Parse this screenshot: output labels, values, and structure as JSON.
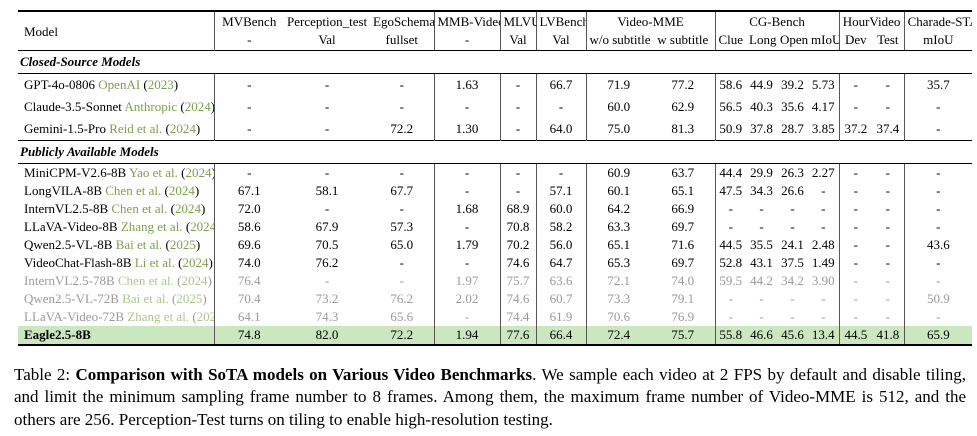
{
  "colors": {
    "citation_green": "#7d9f4e",
    "muted_citation_green": "#aec68f",
    "grayed_text": "#9a9a9a",
    "highlight_green": "#cbe7bf"
  },
  "table": {
    "model_header": "Model",
    "column_groups": [
      {
        "label": "MVBench",
        "subs": [
          "-"
        ]
      },
      {
        "label": "Perception_test",
        "subs": [
          "Val"
        ]
      },
      {
        "label": "EgoSchema",
        "subs": [
          "fullset"
        ]
      },
      {
        "label": "MMB-Video",
        "subs": [
          "-"
        ]
      },
      {
        "label": "MLVU",
        "subs": [
          "Val"
        ]
      },
      {
        "label": "LVBench",
        "subs": [
          "Val"
        ]
      },
      {
        "label": "Video-MME",
        "subs": [
          "w/o subtitle",
          "w subtitle"
        ]
      },
      {
        "label": "CG-Bench",
        "subs": [
          "Clue",
          "Long",
          "Open",
          "mIoU"
        ]
      },
      {
        "label": "HourVideo",
        "subs": [
          "Dev",
          "Test"
        ]
      },
      {
        "label": "Charade-STA",
        "subs": [
          "mIoU"
        ]
      }
    ],
    "sections": [
      {
        "title": "Closed-Source Models",
        "kind": "closed",
        "rows": [
          {
            "model": "GPT-4o-0806",
            "cite": "OpenAI",
            "year": "2023",
            "style": "normal",
            "values": [
              "-",
              "-",
              "-",
              "1.63",
              "-",
              "66.7",
              "71.9",
              "77.2",
              "58.6",
              "44.9",
              "39.2",
              "5.73",
              "-",
              "-",
              "35.7"
            ]
          },
          {
            "model": "Claude-3.5-Sonnet",
            "cite": "Anthropic",
            "year": "2024",
            "style": "normal",
            "values": [
              "-",
              "-",
              "-",
              "-",
              "-",
              "-",
              "60.0",
              "62.9",
              "56.5",
              "40.3",
              "35.6",
              "4.17",
              "-",
              "-",
              "-"
            ]
          },
          {
            "model": "Gemini-1.5-Pro",
            "cite": "Reid et al.",
            "year": "2024",
            "style": "normal",
            "values": [
              "-",
              "-",
              "72.2",
              "1.30",
              "-",
              "64.0",
              "75.0",
              "81.3",
              "50.9",
              "37.8",
              "28.7",
              "3.85",
              "37.2",
              "37.4",
              "-"
            ]
          }
        ]
      },
      {
        "title": "Publicly Available Models",
        "kind": "public",
        "rows": [
          {
            "model": "MiniCPM-V2.6-8B",
            "cite": "Yao et al.",
            "year": "2024",
            "style": "normal",
            "values": [
              "-",
              "-",
              "-",
              "-",
              "-",
              "-",
              "60.9",
              "63.7",
              "44.4",
              "29.9",
              "26.3",
              "2.27",
              "-",
              "-",
              "-"
            ]
          },
          {
            "model": "LongVILA-8B",
            "cite": "Chen et al.",
            "year": "2024",
            "style": "normal",
            "values": [
              "67.1",
              "58.1",
              "67.7",
              "-",
              "-",
              "57.1",
              "60.1",
              "65.1",
              "47.5",
              "34.3",
              "26.6",
              "-",
              "-",
              "-",
              "-"
            ]
          },
          {
            "model": "InternVL2.5-8B",
            "cite": "Chen et al.",
            "year": "2024",
            "style": "normal",
            "values": [
              "72.0",
              "-",
              "-",
              "1.68",
              "68.9",
              "60.0",
              "64.2",
              "66.9",
              "-",
              "-",
              "-",
              "-",
              "-",
              "-",
              "-"
            ]
          },
          {
            "model": "LLaVA-Video-8B",
            "cite": "Zhang et al.",
            "year": "2024",
            "style": "normal",
            "values": [
              "58.6",
              "67.9",
              "57.3",
              "-",
              "70.8",
              "58.2",
              "63.3",
              "69.7",
              "-",
              "-",
              "-",
              "-",
              "-",
              "-",
              "-"
            ]
          },
          {
            "model": "Qwen2.5-VL-8B",
            "cite": "Bai et al.",
            "year": "2025",
            "style": "normal",
            "values": [
              "69.6",
              "70.5",
              "65.0",
              "1.79",
              "70.2",
              "56.0",
              "65.1",
              "71.6",
              "44.5",
              "35.5",
              "24.1",
              "2.48",
              "-",
              "-",
              "43.6"
            ]
          },
          {
            "model": "VideoChat-Flash-8B",
            "cite": "Li et al.",
            "year": "2024",
            "style": "normal",
            "values": [
              "74.0",
              "76.2",
              "-",
              "-",
              "74.6",
              "64.7",
              "65.3",
              "69.7",
              "52.8",
              "43.1",
              "37.5",
              "1.49",
              "-",
              "-",
              "-"
            ]
          },
          {
            "model": "InternVL2.5-78B",
            "cite": "Chen et al.",
            "year": "2024",
            "style": "grayed",
            "values": [
              "76.4",
              "-",
              "-",
              "1.97",
              "75.7",
              "63.6",
              "72.1",
              "74.0",
              "59.5",
              "44.2",
              "34.2",
              "3.90",
              "-",
              "-",
              "-"
            ]
          },
          {
            "model": "Qwen2.5-VL-72B",
            "cite": "Bai et al.",
            "year": "2025",
            "style": "grayed",
            "values": [
              "70.4",
              "73.2",
              "76.2",
              "2.02",
              "74.6",
              "60.7",
              "73.3",
              "79.1",
              "-",
              "-",
              "-",
              "-",
              "-",
              "-",
              "50.9"
            ]
          },
          {
            "model": "LLaVA-Video-72B",
            "cite": "Zhang et al.",
            "year": "2024",
            "style": "grayed",
            "values": [
              "64.1",
              "74.3",
              "65.6",
              "-",
              "74.4",
              "61.9",
              "70.6",
              "76.9",
              "-",
              "-",
              "-",
              "-",
              "-",
              "-",
              "-"
            ]
          },
          {
            "model": "Eagle2.5-8B",
            "cite": "",
            "year": "",
            "style": "highlight",
            "values": [
              "74.8",
              "82.0",
              "72.2",
              "1.94",
              "77.6",
              "66.4",
              "72.4",
              "75.7",
              "55.8",
              "46.6",
              "45.6",
              "13.4",
              "44.5",
              "41.8",
              "65.9"
            ]
          }
        ]
      }
    ]
  },
  "caption": {
    "prefix": "Table 2: ",
    "title": "Comparison with SoTA models on Various Video Benchmarks",
    "rest": ". We sample each video at 2 FPS by default and disable tiling, and limit the minimum sampling frame number to 8 frames. Among them, the maximum frame number of Video-MME is 512, and the others are 256. Perception-Test turns on tiling to enable high-resolution testing."
  }
}
